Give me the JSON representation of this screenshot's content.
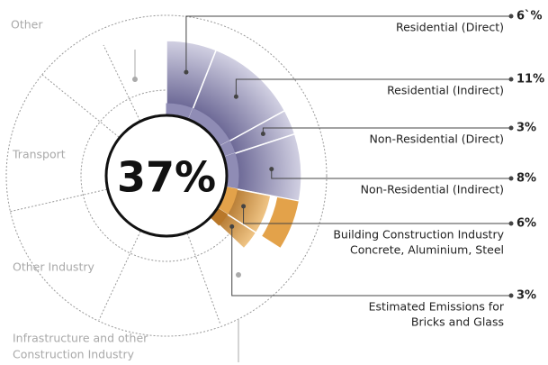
{
  "chart_data": {
    "type": "pie",
    "center_label": "37%",
    "categories": [
      [
        "Residential (Direct)"
      ],
      [
        "Residential (Indirect)"
      ],
      [
        "Non-Residential (Direct)"
      ],
      [
        "Non-Residential (Indirect)"
      ],
      [
        "Building Construction Industry",
        "Concrete, Aluminium, Steel"
      ],
      [
        "Estimated Emissions for",
        "Bricks and Glass"
      ]
    ],
    "values": [
      6,
      11,
      3,
      8,
      6,
      3
    ],
    "value_labels": [
      "6`%",
      "11%",
      "3%",
      "8%",
      "6%",
      "3%"
    ],
    "colors": [
      "#8f8cb5",
      "#8f8cb5",
      "#8f8cb5",
      "#8f8cb5",
      "#e3a24a",
      "#b9782a"
    ],
    "other_categories": [
      [
        "Other"
      ],
      [
        "Transport"
      ],
      [
        "Other Industry"
      ],
      [
        "Infrastructure and other",
        "Construction Industry"
      ]
    ]
  }
}
